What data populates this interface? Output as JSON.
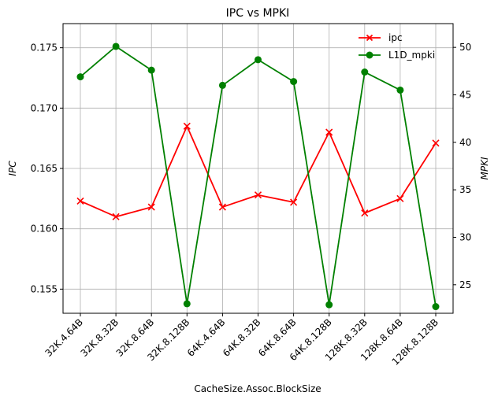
{
  "chart_data": {
    "type": "line",
    "title": "IPC vs MPKI",
    "xlabel": "CacheSize.Assoc.BlockSize",
    "ylabel_left": "IPC",
    "ylabel_right": "MPKI",
    "categories": [
      "32K.4.64B",
      "32K.8.32B",
      "32K.8.64B",
      "32K.8.128B",
      "64K.4.64B",
      "64K.8.32B",
      "64K.8.64B",
      "64K.8.128B",
      "128K.8.32B",
      "128K.8.64B",
      "128K.8.128B"
    ],
    "series": [
      {
        "name": "ipc",
        "axis": "left",
        "color": "#ff0000",
        "marker": "x",
        "values": [
          0.1623,
          0.161,
          0.1618,
          0.1685,
          0.1618,
          0.1628,
          0.1622,
          0.168,
          0.1613,
          0.1625,
          0.1671
        ]
      },
      {
        "name": "L1D_mpki",
        "axis": "right",
        "color": "#008000",
        "marker": "circle",
        "values": [
          46.9,
          50.1,
          47.6,
          23.0,
          46.0,
          48.7,
          46.4,
          22.9,
          47.4,
          45.5,
          22.7
        ]
      }
    ],
    "ylim_left": [
      0.153,
      0.177
    ],
    "yticks_left": [
      "0.155",
      "0.160",
      "0.165",
      "0.170",
      "0.175"
    ],
    "ylim_right": [
      22.0,
      52.5
    ],
    "yticks_right": [
      "25",
      "30",
      "35",
      "40",
      "45",
      "50"
    ],
    "grid": true,
    "legend_position": "top-right"
  }
}
